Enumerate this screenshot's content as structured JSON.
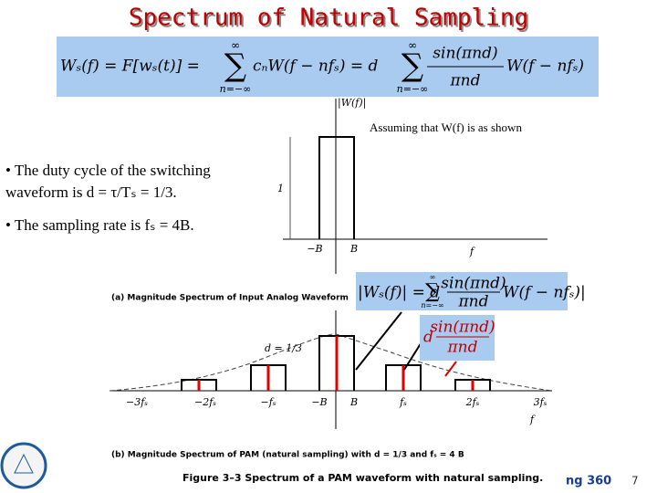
{
  "title": "Spectrum of Natural Sampling",
  "equation": {
    "lhs": "Wₛ(f) = F[wₛ(t)] =",
    "upper": "∞",
    "sigma": "∑",
    "lower": "n=−∞",
    "middle": "cₙW(f − nfₛ) = d",
    "numerator": "sin(πnd)",
    "denominator": "πnd",
    "tail": "W(f − nfₛ)"
  },
  "note": "Assuming that W(f) is as shown",
  "bullets": [
    [
      "• The duty cycle of the switching",
      "waveform is d = τ/Tₛ = 1/3."
    ],
    [
      "• The sampling rate is fₛ = 4B."
    ]
  ],
  "figure_a": {
    "axis_label": "|W(f)|",
    "height_label": "1",
    "x_labels": [
      "−B",
      "B",
      "f"
    ],
    "caption": "(a) Magnitude Spectrum of Input Analog Waveform"
  },
  "figure_b": {
    "d_label": "d = 1/3",
    "x_labels": [
      "−3fₛ",
      "−2fₛ",
      "−fₛ",
      "−B",
      "B",
      "fₛ",
      "2fₛ",
      "3fₛ",
      "f"
    ],
    "caption": "(b) Magnitude Spectrum of PAM (natural sampling) with d = 1/3 and fₛ = 4 B"
  },
  "magnitude_equation": {
    "lhs": "|Wₛ(f)| = d",
    "upper": "∞",
    "sigma": "∑",
    "lower": "n=−∞",
    "numerator": "sin(πnd)",
    "denominator": "πnd",
    "tail": "W(f − nfₛ)|"
  },
  "envelope_label": {
    "prefix": "d",
    "numerator": "sin(πnd)",
    "denominator": "πnd"
  },
  "figure_caption": "Figure 3–3   Spectrum of a PAM waveform with natural sampling.",
  "footer": {
    "course": "ng 360",
    "page": "7"
  }
}
